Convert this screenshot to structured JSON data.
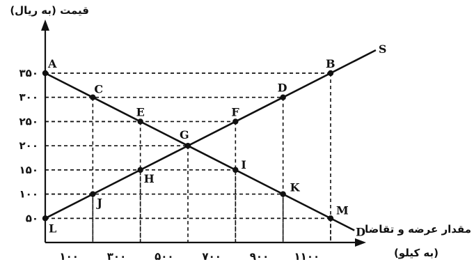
{
  "chart_data": {
    "type": "line",
    "ylabel": "قیمت (به ریال)",
    "xlabel_line1": "مقدار عرضه و تقاضا",
    "xlabel_line2": "(به کیلو)",
    "x_ticks": [
      {
        "value": 100,
        "label": "۱۰۰"
      },
      {
        "value": 300,
        "label": "۳۰۰"
      },
      {
        "value": 500,
        "label": "۵۰۰"
      },
      {
        "value": 700,
        "label": "۷۰۰"
      },
      {
        "value": 900,
        "label": "۹۰۰"
      },
      {
        "value": 1100,
        "label": "۱۱۰۰"
      }
    ],
    "y_ticks": [
      {
        "value": 50,
        "label": "۵۰"
      },
      {
        "value": 100,
        "label": "۱۰۰"
      },
      {
        "value": 150,
        "label": "۱۵۰"
      },
      {
        "value": 200,
        "label": "۲۰۰"
      },
      {
        "value": 250,
        "label": "۲۵۰"
      },
      {
        "value": 300,
        "label": "۳۰۰"
      },
      {
        "value": 350,
        "label": "۳۵۰"
      }
    ],
    "xlim": [
      0,
      1300
    ],
    "ylim": [
      0,
      420
    ],
    "series": [
      {
        "name": "S",
        "points": [
          {
            "x": 0,
            "y": 50,
            "label": "L"
          },
          {
            "x": 200,
            "y": 100,
            "label": "J"
          },
          {
            "x": 400,
            "y": 150,
            "label": "H"
          },
          {
            "x": 600,
            "y": 200,
            "label": "G"
          },
          {
            "x": 800,
            "y": 250,
            "label": "F"
          },
          {
            "x": 1000,
            "y": 300,
            "label": "D"
          },
          {
            "x": 1200,
            "y": 350,
            "label": "B"
          }
        ],
        "end": {
          "x": 1390,
          "y": 397.5
        }
      },
      {
        "name": "D",
        "points": [
          {
            "x": 0,
            "y": 350,
            "label": "A"
          },
          {
            "x": 200,
            "y": 300,
            "label": "C"
          },
          {
            "x": 400,
            "y": 250,
            "label": "E"
          },
          {
            "x": 600,
            "y": 200,
            "label": "G"
          },
          {
            "x": 800,
            "y": 150,
            "label": "I"
          },
          {
            "x": 1000,
            "y": 100,
            "label": "K"
          },
          {
            "x": 1200,
            "y": 50,
            "label": "M"
          }
        ],
        "end": {
          "x": 1300,
          "y": 25
        }
      }
    ]
  }
}
